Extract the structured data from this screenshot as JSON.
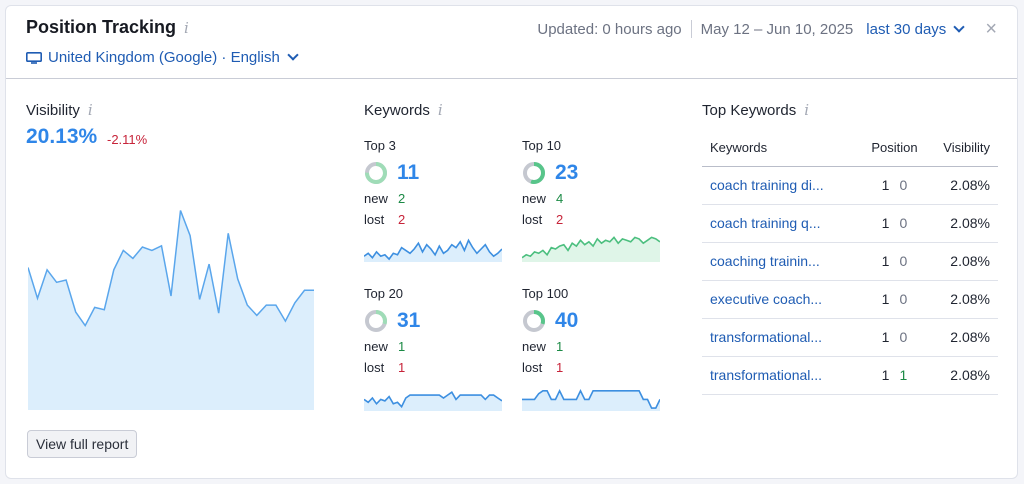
{
  "header": {
    "title": "Position Tracking",
    "info_glyph": "i",
    "locale": "United Kingdom (Google) · English",
    "updated": "Updated: 0 hours ago",
    "date_range": "May 12 – Jun 10, 2025",
    "range_option": "last 30 days",
    "close_glyph": "×"
  },
  "visibility": {
    "title": "Visibility",
    "value": "20.13%",
    "delta": "-2.11%",
    "series": [
      12.5,
      9.8,
      12.3,
      11.2,
      11.4,
      8.6,
      7.4,
      9.0,
      8.8,
      12.3,
      14.0,
      13.3,
      14.3,
      14.0,
      14.4,
      10.0,
      17.5,
      15.3,
      9.7,
      12.8,
      8.5,
      15.5,
      11.5,
      9.2,
      8.3,
      9.2,
      9.2,
      7.8,
      9.4,
      10.5,
      10.5
    ]
  },
  "keywords": {
    "title": "Keywords",
    "new_label": "new",
    "lost_label": "lost",
    "groups": [
      {
        "label": "Top 3",
        "count": "11",
        "new": "2",
        "lost": "2",
        "ratio": 0.75,
        "color": "#9fdcb7",
        "fill": "#dceefc",
        "stroke": "#3d8fe0",
        "spark": [
          4,
          6,
          3,
          7,
          4,
          5,
          2,
          6,
          5,
          10,
          8,
          6,
          9,
          13,
          7,
          12,
          9,
          5,
          11,
          6,
          8,
          12,
          10,
          14,
          8,
          15,
          10,
          6,
          9,
          12,
          7,
          4,
          6,
          9
        ]
      },
      {
        "label": "Top 10",
        "count": "23",
        "new": "4",
        "lost": "2",
        "ratio": 0.55,
        "color": "#58c58a",
        "fill": "#dff5e8",
        "stroke": "#4cbf7f",
        "spark": [
          3,
          5,
          4,
          7,
          6,
          8,
          5,
          10,
          9,
          11,
          12,
          8,
          13,
          11,
          15,
          12,
          14,
          11,
          16,
          13,
          15,
          14,
          17,
          13,
          16,
          15,
          14,
          17,
          16,
          13,
          15,
          17,
          16,
          14
        ]
      },
      {
        "label": "Top 20",
        "count": "31",
        "new": "1",
        "lost": "1",
        "ratio": 0.3,
        "color": "#9fdcb7",
        "fill": "#dceefc",
        "stroke": "#3d8fe0",
        "spark": [
          8,
          6,
          9,
          5,
          8,
          7,
          10,
          5,
          6,
          3,
          9,
          11,
          11,
          11,
          11,
          11,
          11,
          11,
          11,
          9,
          11,
          13,
          8,
          11,
          11,
          11,
          11,
          11,
          11,
          8,
          11,
          11,
          9,
          7
        ]
      },
      {
        "label": "Top 100",
        "count": "40",
        "new": "1",
        "lost": "1",
        "ratio": 0.3,
        "color": "#58c58a",
        "fill": "#dceefc",
        "stroke": "#3d8fe0",
        "spark": [
          8,
          8,
          8,
          8,
          12,
          14,
          14,
          8,
          8,
          14,
          8,
          8,
          8,
          8,
          14,
          8,
          8,
          14,
          14,
          14,
          14,
          14,
          14,
          14,
          14,
          14,
          14,
          14,
          14,
          8,
          8,
          2,
          2,
          8
        ]
      }
    ]
  },
  "top_keywords": {
    "title": "Top Keywords",
    "columns": {
      "keyword": "Keywords",
      "position": "Position",
      "visibility": "Visibility"
    },
    "rows": [
      {
        "keyword": "coach training di...",
        "position": "1",
        "change": "0",
        "visibility": "2.08%"
      },
      {
        "keyword": "coach training q...",
        "position": "1",
        "change": "0",
        "visibility": "2.08%"
      },
      {
        "keyword": "coaching trainin...",
        "position": "1",
        "change": "0",
        "visibility": "2.08%"
      },
      {
        "keyword": "executive coach...",
        "position": "1",
        "change": "0",
        "visibility": "2.08%"
      },
      {
        "keyword": "transformational...",
        "position": "1",
        "change": "0",
        "visibility": "2.08%"
      },
      {
        "keyword": "transformational...",
        "position": "1",
        "change": "1",
        "visibility": "2.08%"
      }
    ]
  },
  "actions": {
    "full_report": "View full report"
  }
}
